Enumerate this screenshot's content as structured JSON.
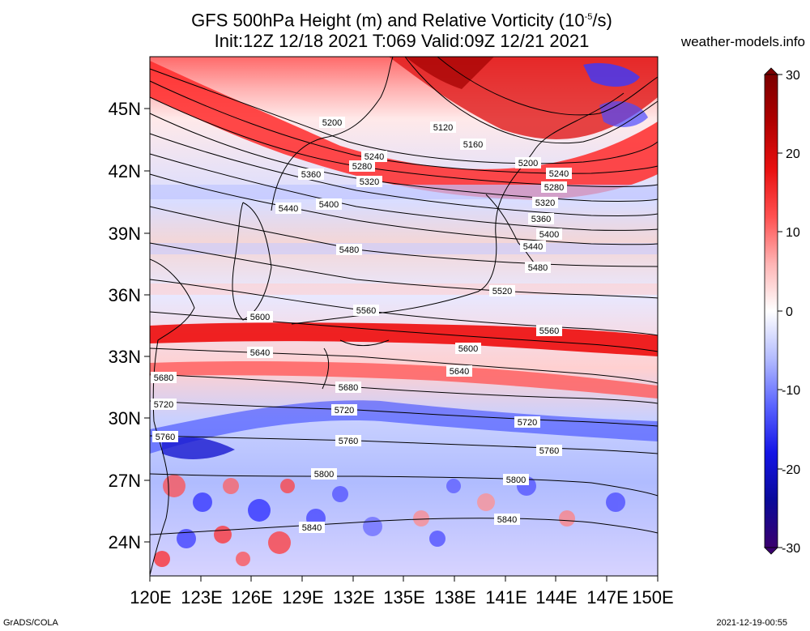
{
  "header": {
    "title_line1_prefix": "GFS 500hPa Height (m) and Relative Vorticity (10",
    "title_line1_exp": "-5",
    "title_line1_suffix": "/s)",
    "title_line2": "Init:12Z 12/18 2021 T:069 Valid:09Z 12/21 2021",
    "site": "weather-models.info"
  },
  "footer": {
    "left": "GrADS/COLA",
    "right": "2021-12-19-00:55"
  },
  "map": {
    "lat_ticks": [
      "45N",
      "42N",
      "39N",
      "36N",
      "33N",
      "30N",
      "27N",
      "24N"
    ],
    "lon_ticks": [
      "120E",
      "123E",
      "126E",
      "129E",
      "132E",
      "135E",
      "138E",
      "141E",
      "144E",
      "147E",
      "150E"
    ]
  },
  "colorbar": {
    "labels": [
      "30",
      "20",
      "10",
      "0",
      "-10",
      "-20",
      "-30"
    ],
    "colors": [
      "#7b0000",
      "#c81414",
      "#ff3030",
      "#ff9a9a",
      "#ffffff",
      "#9aa8ff",
      "#3030ff",
      "#1010b0",
      "#3a006e"
    ]
  },
  "contours": [
    {
      "label": "5120"
    },
    {
      "label": "5160"
    },
    {
      "label": "5200"
    },
    {
      "label": "5240"
    },
    {
      "label": "5280"
    },
    {
      "label": "5320"
    },
    {
      "label": "5360"
    },
    {
      "label": "5400"
    },
    {
      "label": "5440"
    },
    {
      "label": "5480"
    },
    {
      "label": "5520"
    },
    {
      "label": "5560"
    },
    {
      "label": "5600"
    },
    {
      "label": "5640"
    },
    {
      "label": "5680"
    },
    {
      "label": "5720"
    },
    {
      "label": "5760"
    },
    {
      "label": "5800"
    },
    {
      "label": "5840"
    }
  ]
}
